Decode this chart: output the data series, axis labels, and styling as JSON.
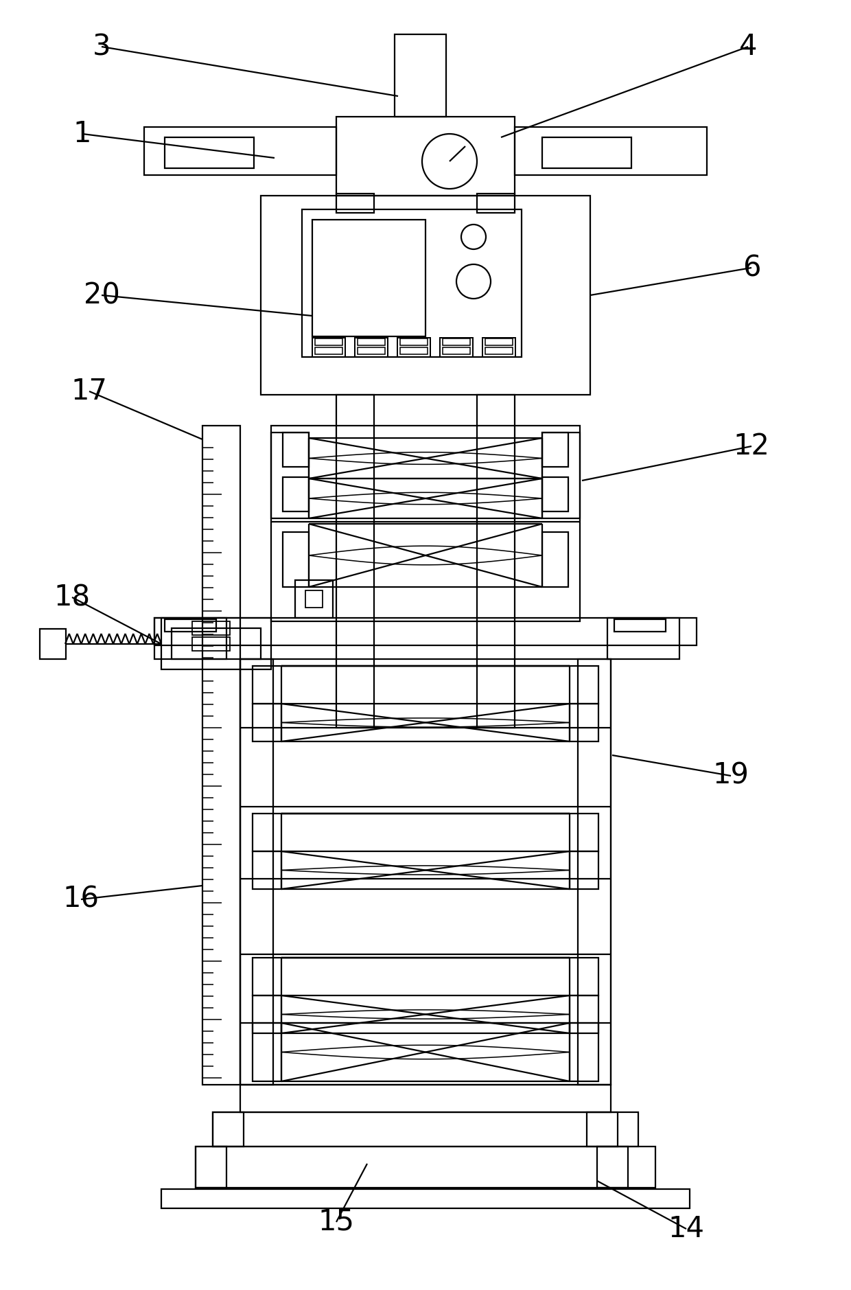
{
  "bg_color": "#ffffff",
  "lc": "#000000",
  "lw": 1.6,
  "fig_width": 12.4,
  "fig_height": 18.79,
  "dpi": 100
}
